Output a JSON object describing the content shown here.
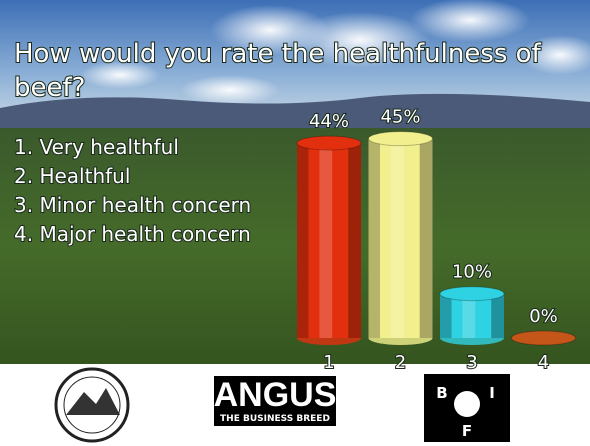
{
  "chart_data": {
    "type": "bar",
    "title": "How would you rate the healthfulness of beef?",
    "categories": [
      "1",
      "2",
      "3",
      "4"
    ],
    "values": [
      44,
      45,
      10,
      0
    ],
    "value_labels": [
      "44%",
      "45%",
      "10%",
      "0%"
    ],
    "colors": [
      "#e2300f",
      "#f2f08e",
      "#2fd2e2",
      "#c4561a"
    ]
  },
  "options": [
    "1.  Very healthful",
    "2.  Healthful",
    "3.  Minor health concern",
    "4.  Major health concern"
  ],
  "logos": {
    "angus": "ANGUS",
    "angus_tagline": "THE BUSINESS BREED",
    "bif": [
      "B",
      "I",
      "F"
    ]
  }
}
